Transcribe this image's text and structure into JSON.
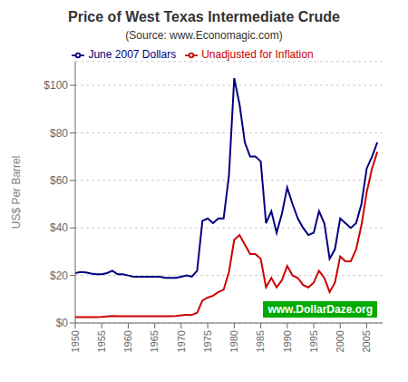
{
  "chart_data": {
    "type": "line",
    "title": "Price of West Texas Intermediate Crude",
    "subtitle": "(Source: www.Economagic.com)",
    "y_label": "US$ Per Barrel",
    "annotations": [
      {
        "text": "www.DollarDaze.org",
        "color": "#ffffff",
        "background": "#00aa00"
      }
    ],
    "x": [
      1950,
      1951,
      1952,
      1953,
      1954,
      1955,
      1956,
      1957,
      1958,
      1959,
      1960,
      1961,
      1962,
      1963,
      1964,
      1965,
      1966,
      1967,
      1968,
      1969,
      1970,
      1971,
      1972,
      1973,
      1974,
      1975,
      1976,
      1977,
      1978,
      1979,
      1980,
      1981,
      1982,
      1983,
      1984,
      1985,
      1986,
      1987,
      1988,
      1989,
      1990,
      1991,
      1992,
      1993,
      1994,
      1995,
      1996,
      1997,
      1998,
      1999,
      2000,
      2001,
      2002,
      2003,
      2004,
      2005,
      2006,
      2007
    ],
    "series": [
      {
        "name": "June 2007 Dollars",
        "color": "#000080",
        "values": [
          21,
          21.5,
          21.3,
          20.8,
          20.5,
          20.5,
          21,
          22,
          20.5,
          20.5,
          20,
          19.5,
          19.5,
          19.5,
          19.5,
          19.5,
          19.5,
          19,
          19,
          19,
          19.5,
          20,
          19.5,
          22,
          43,
          44,
          42,
          44,
          44,
          62,
          103,
          92,
          76,
          70,
          70,
          68,
          42,
          47,
          38,
          46,
          57,
          50,
          44,
          40,
          37,
          38,
          47,
          42,
          27,
          31,
          44,
          42,
          40,
          42,
          50,
          65,
          70,
          76
        ]
      },
      {
        "name": "Unadjusted for Inflation",
        "color": "#cc0000",
        "values": [
          2.5,
          2.5,
          2.5,
          2.5,
          2.5,
          2.6,
          2.8,
          3.0,
          2.9,
          2.9,
          2.9,
          2.9,
          2.9,
          2.9,
          2.9,
          2.9,
          2.9,
          2.9,
          2.9,
          3.0,
          3.2,
          3.4,
          3.4,
          4.3,
          9.5,
          10.7,
          11.5,
          13.0,
          14.0,
          21.5,
          35,
          37,
          33,
          29,
          29,
          27,
          15,
          19,
          15,
          18,
          24,
          20,
          19,
          16,
          15,
          17,
          22,
          19,
          13,
          17,
          28,
          26,
          26,
          31,
          41,
          55,
          65,
          72
        ]
      }
    ],
    "xlim": [
      1950,
      2008
    ],
    "xticks": [
      1950,
      1955,
      1960,
      1965,
      1970,
      1975,
      1980,
      1985,
      1990,
      1995,
      2000,
      2005
    ],
    "ylim": [
      0,
      110
    ],
    "yticks": [
      {
        "value": 0,
        "label": "$0"
      },
      {
        "value": 20,
        "label": "$20"
      },
      {
        "value": 40,
        "label": "$40"
      },
      {
        "value": 60,
        "label": "$60"
      },
      {
        "value": 80,
        "label": "$80"
      },
      {
        "value": 100,
        "label": "$100"
      }
    ],
    "grid": true,
    "legend": "top"
  }
}
